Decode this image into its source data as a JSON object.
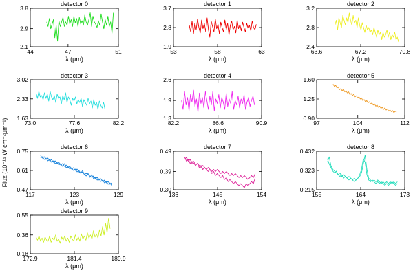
{
  "figure": {
    "ylabel": "Flux (10⁻¹⁶ W cm⁻²μm⁻¹)"
  },
  "chart_data": [
    {
      "type": "line",
      "title": "detector 0",
      "xlabel": "λ (μm)",
      "xticks": [
        "44",
        "47",
        "51"
      ],
      "yticks": [
        "2.1",
        "2.9",
        "3.8"
      ],
      "xlim": [
        44,
        51
      ],
      "ylim": [
        2.1,
        3.8
      ],
      "x_start": 45.3,
      "x_end": 50.6,
      "color": "#22dd22",
      "series": [
        {
          "values": [
            3.2,
            3.0,
            3.35,
            2.9,
            3.1,
            3.3,
            2.5,
            3.05,
            2.35,
            3.25,
            3.0,
            3.2,
            3.4,
            3.0,
            3.2,
            3.05,
            3.45,
            3.1,
            3.3,
            3.0,
            3.45,
            3.15,
            3.35,
            3.0,
            3.4,
            3.1,
            3.25,
            3.05,
            3.5,
            3.2,
            3.05,
            3.3,
            3.6,
            3.0,
            3.45,
            3.2,
            3.1,
            2.95,
            3.25,
            3.05,
            3.55,
            3.2,
            2.9,
            3.3,
            3.05,
            3.45,
            3.0,
            3.2,
            2.7,
            3.6
          ]
        }
      ]
    },
    {
      "type": "line",
      "title": "detector 1",
      "xlabel": "λ (μm)",
      "xticks": [
        "53",
        "58",
        "63"
      ],
      "yticks": [
        "1.9",
        "2.8",
        "3.7"
      ],
      "xlim": [
        53,
        63
      ],
      "ylim": [
        1.9,
        3.7
      ],
      "x_start": 54.8,
      "x_end": 62.4,
      "color": "#ee0000",
      "series": [
        {
          "values": [
            2.9,
            2.6,
            3.1,
            2.5,
            3.0,
            2.7,
            3.2,
            2.8,
            2.55,
            3.15,
            2.75,
            3.0,
            2.6,
            3.25,
            2.7,
            2.35,
            3.1,
            2.85,
            2.6,
            3.2,
            2.75,
            2.95,
            2.5,
            3.05,
            2.8,
            2.6,
            3.15,
            2.7,
            3.0,
            2.45,
            2.9,
            3.1,
            2.7,
            2.85,
            2.55,
            3.15,
            2.75,
            2.95,
            2.65,
            3.05,
            2.8,
            2.6,
            3.0,
            2.75,
            2.9,
            2.65,
            3.1,
            2.8,
            2.7,
            2.95
          ]
        }
      ]
    },
    {
      "type": "line",
      "title": "detector 2",
      "xlabel": "λ (μm)",
      "xticks": [
        "63.6",
        "67.2",
        "70.8"
      ],
      "yticks": [
        "2.4",
        "2.8",
        "3.2"
      ],
      "xlim": [
        63.6,
        70.8
      ],
      "ylim": [
        2.4,
        3.2
      ],
      "x_start": 65.1,
      "x_end": 70.3,
      "color": "#eeee22",
      "series": [
        {
          "values": [
            2.85,
            2.95,
            2.75,
            3.0,
            2.9,
            2.8,
            3.05,
            2.95,
            2.85,
            3.0,
            2.9,
            3.1,
            2.95,
            2.85,
            3.05,
            2.9,
            2.95,
            2.8,
            3.0,
            2.85,
            2.75,
            2.9,
            2.8,
            2.7,
            2.85,
            2.75,
            2.8,
            2.7,
            2.75,
            2.65,
            2.8,
            2.7,
            2.6,
            2.75,
            2.65,
            2.7,
            2.55,
            2.7,
            2.6,
            2.65,
            2.75,
            2.6,
            2.7,
            2.55,
            2.65,
            2.6,
            2.7,
            2.55,
            2.6,
            2.5
          ]
        }
      ]
    },
    {
      "type": "line",
      "title": "detector 3",
      "xlabel": "λ (μm)",
      "xticks": [
        "73.0",
        "77.6",
        "82.2"
      ],
      "yticks": [
        "1.63",
        "2.33",
        "3.02"
      ],
      "xlim": [
        73.0,
        82.2
      ],
      "ylim": [
        1.63,
        3.02
      ],
      "x_start": 73.6,
      "x_end": 80.8,
      "color": "#22dddd",
      "series": [
        {
          "values": [
            2.55,
            2.35,
            2.6,
            2.4,
            2.45,
            2.3,
            2.55,
            2.35,
            2.5,
            2.25,
            2.6,
            2.4,
            2.3,
            2.45,
            2.2,
            2.5,
            2.35,
            2.4,
            2.15,
            2.45,
            2.3,
            2.55,
            2.2,
            2.4,
            2.3,
            2.1,
            2.35,
            2.25,
            2.4,
            2.15,
            2.3,
            2.2,
            2.35,
            2.05,
            2.3,
            2.2,
            2.1,
            2.35,
            2.15,
            2.25,
            2.0,
            2.3,
            2.1,
            2.2,
            1.95,
            2.25,
            2.1,
            2.0,
            2.2,
            1.95
          ]
        }
      ]
    },
    {
      "type": "line",
      "title": "detector 4",
      "xlabel": "λ (μm)",
      "xticks": [
        "82.2",
        "86.6",
        "90.9"
      ],
      "yticks": [
        "1.3",
        "1.9",
        "2.6"
      ],
      "xlim": [
        82.2,
        90.9
      ],
      "ylim": [
        1.3,
        2.6
      ],
      "x_start": 83.0,
      "x_end": 90.2,
      "color": "#ee22ee",
      "series": [
        {
          "values": [
            1.9,
            1.6,
            2.2,
            1.75,
            2.0,
            1.55,
            2.1,
            1.85,
            2.25,
            1.7,
            1.95,
            1.5,
            2.15,
            1.8,
            2.0,
            1.65,
            2.2,
            1.9,
            1.6,
            2.05,
            1.75,
            2.2,
            1.55,
            1.95,
            1.8,
            2.1,
            1.65,
            2.0,
            1.85,
            1.6,
            2.15,
            1.7,
            1.95,
            1.8,
            2.2,
            1.6,
            1.9,
            1.75,
            2.05,
            1.65,
            1.95,
            1.8,
            2.1,
            1.6,
            1.85,
            2.0,
            1.7,
            1.9,
            2.05,
            1.75
          ]
        }
      ]
    },
    {
      "type": "line",
      "title": "detector 5",
      "xlabel": "λ (μm)",
      "xticks": [
        "97",
        "104",
        "112"
      ],
      "yticks": [
        "0.90",
        "1.25",
        "1.60"
      ],
      "xlim": [
        97,
        112
      ],
      "ylim": [
        0.9,
        1.6
      ],
      "x_start": 99.8,
      "x_end": 110.6,
      "color": "#ee9922",
      "series": [
        {
          "values": [
            1.52,
            1.48,
            1.5,
            1.45,
            1.47,
            1.42,
            1.44,
            1.4,
            1.43,
            1.38,
            1.4,
            1.36,
            1.38,
            1.33,
            1.35,
            1.31,
            1.34,
            1.29,
            1.31,
            1.27,
            1.29,
            1.25,
            1.27,
            1.22,
            1.24,
            1.2,
            1.22,
            1.18,
            1.2,
            1.16,
            1.18,
            1.14,
            1.16,
            1.12,
            1.14,
            1.1,
            1.12,
            1.08,
            1.1,
            1.06,
            1.09,
            1.05,
            1.07,
            1.03,
            1.05,
            1.02,
            1.04,
            1.0,
            1.03,
            1.01
          ]
        }
      ]
    },
    {
      "type": "line",
      "title": "detector 6",
      "xlabel": "λ (μm)",
      "xticks": [
        "117",
        "123",
        "129"
      ],
      "yticks": [
        "0.47",
        "0.61",
        "0.75"
      ],
      "xlim": [
        117,
        129
      ],
      "ylim": [
        0.47,
        0.75
      ],
      "x_start": 118.4,
      "x_end": 128.1,
      "color": "#2288dd",
      "series": [
        {
          "values": [
            0.7,
            0.71,
            0.69,
            0.7,
            0.68,
            0.69,
            0.67,
            0.68,
            0.66,
            0.67,
            0.65,
            0.66,
            0.64,
            0.66,
            0.63,
            0.64,
            0.62,
            0.63,
            0.61,
            0.62,
            0.6,
            0.61,
            0.59,
            0.6,
            0.58,
            0.59,
            0.58,
            0.57,
            0.56,
            0.57,
            0.55,
            0.56,
            0.54,
            0.55,
            0.53,
            0.54,
            0.52,
            0.53,
            0.51,
            0.52
          ]
        },
        {
          "values": [
            0.72,
            0.7,
            0.71,
            0.69,
            0.7,
            0.68,
            0.69,
            0.67,
            0.68,
            0.66,
            0.67,
            0.65,
            0.66,
            0.64,
            0.65,
            0.63,
            0.64,
            0.62,
            0.63,
            0.61,
            0.62,
            0.6,
            0.59,
            0.61,
            0.58,
            0.57,
            0.59,
            0.56,
            0.58,
            0.55,
            0.56,
            0.54,
            0.55,
            0.53,
            0.54,
            0.52,
            0.53,
            0.51,
            0.52,
            0.5
          ]
        }
      ]
    },
    {
      "type": "line",
      "title": "detector 7",
      "xlabel": "λ (μm)",
      "xticks": [
        "136",
        "145",
        "154"
      ],
      "yticks": [
        "0.30",
        "0.39",
        "0.49"
      ],
      "xlim": [
        136,
        154
      ],
      "ylim": [
        0.3,
        0.49
      ],
      "x_start": 138.3,
      "x_end": 152.7,
      "color": "#dd2299",
      "series": [
        {
          "values": [
            0.45,
            0.46,
            0.44,
            0.45,
            0.43,
            0.44,
            0.42,
            0.43,
            0.41,
            0.42,
            0.4,
            0.41,
            0.4,
            0.39,
            0.4,
            0.38,
            0.39,
            0.37,
            0.38,
            0.37,
            0.36,
            0.37,
            0.35,
            0.36,
            0.34,
            0.35,
            0.34,
            0.33,
            0.34,
            0.33,
            0.32,
            0.33,
            0.32,
            0.31,
            0.33,
            0.32,
            0.33,
            0.34,
            0.33,
            0.36
          ]
        },
        {
          "values": [
            0.46,
            0.44,
            0.45,
            0.43,
            0.44,
            0.43,
            0.42,
            0.43,
            0.42,
            0.41,
            0.42,
            0.41,
            0.4,
            0.41,
            0.4,
            0.39,
            0.4,
            0.39,
            0.4,
            0.39,
            0.38,
            0.39,
            0.38,
            0.39,
            0.38,
            0.37,
            0.38,
            0.37,
            0.38,
            0.37,
            0.36,
            0.37,
            0.36,
            0.37,
            0.36,
            0.35,
            0.36,
            0.37,
            0.36,
            0.38
          ]
        }
      ]
    },
    {
      "type": "line",
      "title": "detector 8",
      "xlabel": "λ (μm)",
      "xticks": [
        "155",
        "164",
        "173"
      ],
      "yticks": [
        "0.215",
        "0.323",
        "0.432"
      ],
      "xlim": [
        155,
        173
      ],
      "ylim": [
        0.215,
        0.432
      ],
      "x_start": 157.2,
      "x_end": 171.5,
      "color": "#22ddbb",
      "series": [
        {
          "values": [
            0.37,
            0.4,
            0.35,
            0.33,
            0.32,
            0.31,
            0.3,
            0.31,
            0.29,
            0.3,
            0.29,
            0.28,
            0.29,
            0.28,
            0.27,
            0.28,
            0.27,
            0.28,
            0.29,
            0.31,
            0.36,
            0.41,
            0.33,
            0.28,
            0.27,
            0.26,
            0.27,
            0.26,
            0.27,
            0.26,
            0.25,
            0.26,
            0.25,
            0.26,
            0.25,
            0.26,
            0.25,
            0.26,
            0.25,
            0.26
          ]
        },
        {
          "values": [
            0.39,
            0.36,
            0.34,
            0.32,
            0.31,
            0.32,
            0.3,
            0.29,
            0.3,
            0.28,
            0.29,
            0.28,
            0.27,
            0.28,
            0.27,
            0.26,
            0.27,
            0.28,
            0.3,
            0.33,
            0.39,
            0.37,
            0.3,
            0.27,
            0.26,
            0.27,
            0.26,
            0.25,
            0.26,
            0.25,
            0.26,
            0.25,
            0.24,
            0.25,
            0.24,
            0.25,
            0.26,
            0.25,
            0.24,
            0.25
          ]
        }
      ]
    },
    {
      "type": "line",
      "title": "detector 9",
      "xlabel": "λ (μm)",
      "xticks": [
        "172.9",
        "181.4",
        "189.9"
      ],
      "yticks": [
        "0.18",
        "0.36",
        "0.55"
      ],
      "xlim": [
        172.9,
        189.9
      ],
      "ylim": [
        0.18,
        0.55
      ],
      "x_start": 174.0,
      "x_end": 188.3,
      "color": "#ccee22",
      "series": [
        {
          "values": [
            0.34,
            0.31,
            0.35,
            0.3,
            0.33,
            0.29,
            0.34,
            0.31,
            0.3,
            0.35,
            0.29,
            0.33,
            0.31,
            0.36,
            0.3,
            0.32,
            0.28,
            0.34,
            0.31,
            0.35,
            0.3,
            0.33,
            0.29,
            0.35,
            0.32,
            0.3,
            0.36,
            0.31,
            0.34,
            0.3,
            0.37,
            0.32,
            0.35,
            0.31,
            0.38,
            0.33,
            0.36,
            0.32,
            0.4,
            0.34,
            0.37,
            0.33,
            0.41,
            0.35,
            0.44,
            0.36,
            0.47,
            0.38,
            0.52,
            0.42
          ]
        }
      ]
    }
  ]
}
